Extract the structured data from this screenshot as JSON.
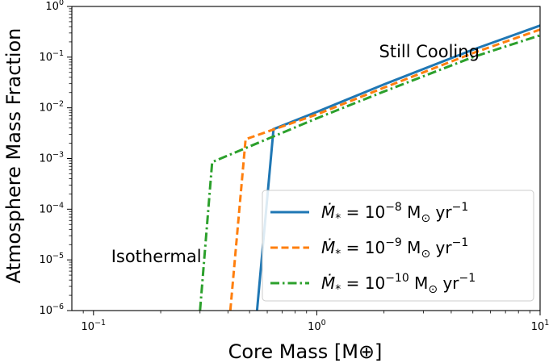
{
  "chart_data": {
    "type": "line",
    "xscale": "log",
    "yscale": "log",
    "xlim": [
      0.08,
      10
    ],
    "ylim": [
      1e-06,
      1
    ],
    "xlabel": "Core Mass [M⊕]",
    "ylabel": "Atmosphere Mass Fraction",
    "grid": false,
    "legend_position": "lower-right",
    "x_ticks": [
      {
        "value": 0.1,
        "base": "10",
        "exp": "−1"
      },
      {
        "value": 1,
        "base": "10",
        "exp": "0"
      },
      {
        "value": 10,
        "base": "10",
        "exp": "1"
      }
    ],
    "y_ticks": [
      {
        "value": 1e-06,
        "base": "10",
        "exp": "−6"
      },
      {
        "value": 1e-05,
        "base": "10",
        "exp": "−5"
      },
      {
        "value": 0.0001,
        "base": "10",
        "exp": "−4"
      },
      {
        "value": 0.001,
        "base": "10",
        "exp": "−3"
      },
      {
        "value": 0.01,
        "base": "10",
        "exp": "−2"
      },
      {
        "value": 0.1,
        "base": "10",
        "exp": "−1"
      },
      {
        "value": 1,
        "base": "10",
        "exp": "0"
      }
    ],
    "annotations": [
      {
        "text": "Still Cooling",
        "x": 1.9,
        "y": 0.1
      },
      {
        "text": "Isothermal",
        "x": 0.12,
        "y": 9e-06
      }
    ],
    "series": [
      {
        "name": "Ṁ* = 10⁻⁸ M☉ yr⁻¹",
        "legend": {
          "prefix": "Ṁ",
          "sub": "*",
          "mid": " = 10",
          "exp": "−8",
          "unit": " M",
          "unit_sub": "⊙",
          "tail": " yr",
          "tail_exp": "−1"
        },
        "color": "#1f77b4",
        "dash": "solid",
        "x": [
          0.54,
          0.64,
          1.0,
          2.0,
          5.0,
          10.0
        ],
        "y": [
          1e-06,
          0.0038,
          0.0083,
          0.029,
          0.14,
          0.42
        ]
      },
      {
        "name": "Ṁ* = 10⁻⁹ M☉ yr⁻¹",
        "legend": {
          "prefix": "Ṁ",
          "sub": "*",
          "mid": " = 10",
          "exp": "−9",
          "unit": " M",
          "unit_sub": "⊙",
          "tail": " yr",
          "tail_exp": "−1"
        },
        "color": "#ff7f0e",
        "dash": "dashed",
        "x": [
          0.41,
          0.48,
          1.0,
          2.0,
          5.0,
          10.0
        ],
        "y": [
          1e-06,
          0.0024,
          0.0074,
          0.025,
          0.12,
          0.35
        ]
      },
      {
        "name": "Ṁ* = 10⁻¹⁰ M☉ yr⁻¹",
        "legend": {
          "prefix": "Ṁ",
          "sub": "*",
          "mid": " = 10",
          "exp": "−10",
          "unit": " M",
          "unit_sub": "⊙",
          "tail": " yr",
          "tail_exp": "−1"
        },
        "color": "#2ca02c",
        "dash": "dashdot",
        "x": [
          0.3,
          0.34,
          1.0,
          2.0,
          5.0,
          10.0
        ],
        "y": [
          1e-06,
          0.00085,
          0.0062,
          0.021,
          0.1,
          0.27
        ]
      }
    ]
  }
}
